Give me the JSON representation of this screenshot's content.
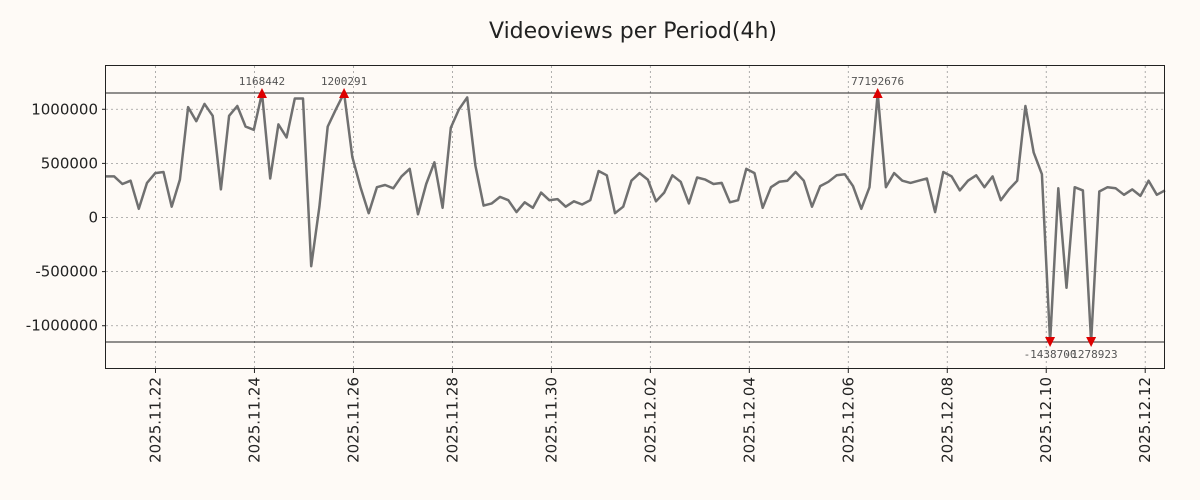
{
  "chart_data": {
    "type": "line",
    "title": "Videoviews per Period(4h)",
    "xlabel": "",
    "ylabel": "",
    "ylim": [
      -1400000,
      1400000
    ],
    "xlim": [
      0,
      21.4
    ],
    "x_origin": "2025-11-21",
    "yticks": [
      1000000,
      500000,
      0,
      -500000,
      -1000000
    ],
    "ytick_labels": [
      "1000000",
      "500000",
      "0",
      "-500000",
      "-1000000"
    ],
    "xticks": [
      1,
      3,
      5,
      7,
      9,
      11,
      13,
      15,
      17,
      19,
      21
    ],
    "xtick_labels": [
      "2025.11.22",
      "2025.11.24",
      "2025.11.26",
      "2025.11.28",
      "2025.11.30",
      "2025.12.02",
      "2025.12.04",
      "2025.12.06",
      "2025.12.08",
      "2025.12.10",
      "2025.12.12"
    ],
    "grid": true,
    "clip_lines": [
      1150000,
      -1150000
    ],
    "series": [
      {
        "name": "Videoviews",
        "color": "#707070",
        "values": [
          380000,
          380000,
          310000,
          340000,
          80000,
          320000,
          410000,
          420000,
          100000,
          350000,
          1020000,
          890000,
          1050000,
          940000,
          260000,
          940000,
          1030000,
          840000,
          810000,
          1150000,
          360000,
          860000,
          740000,
          1100000,
          1100000,
          -450000,
          100000,
          840000,
          1000000,
          1150000,
          560000,
          280000,
          40000,
          280000,
          300000,
          270000,
          380000,
          450000,
          30000,
          310000,
          510000,
          90000,
          830000,
          1000000,
          1110000,
          480000,
          110000,
          130000,
          190000,
          160000,
          50000,
          140000,
          90000,
          230000,
          160000,
          170000,
          100000,
          150000,
          120000,
          160000,
          430000,
          390000,
          40000,
          100000,
          340000,
          410000,
          350000,
          150000,
          230000,
          390000,
          330000,
          130000,
          370000,
          350000,
          310000,
          320000,
          140000,
          160000,
          450000,
          410000,
          90000,
          280000,
          330000,
          340000,
          420000,
          340000,
          100000,
          290000,
          330000,
          390000,
          400000,
          290000,
          80000,
          280000,
          1150000,
          280000,
          410000,
          340000,
          320000,
          340000,
          360000,
          50000,
          420000,
          380000,
          250000,
          340000,
          390000,
          280000,
          380000,
          160000,
          260000,
          340000,
          1030000,
          600000,
          400000,
          -1150000,
          270000,
          -650000,
          280000,
          250000,
          -1150000,
          240000,
          280000,
          270000,
          210000,
          260000,
          200000,
          340000,
          210000,
          250000
        ]
      }
    ],
    "annotations": [
      {
        "index": 19,
        "label": "1168442",
        "direction": "up"
      },
      {
        "index": 29,
        "label": "1200291",
        "direction": "up"
      },
      {
        "index": 94,
        "label": "77192676",
        "direction": "up"
      },
      {
        "index": 115,
        "label": "-1438700",
        "direction": "down"
      },
      {
        "index": 120,
        "label": "-1278923",
        "direction": "down"
      }
    ],
    "marker_color": "#dd0000"
  }
}
